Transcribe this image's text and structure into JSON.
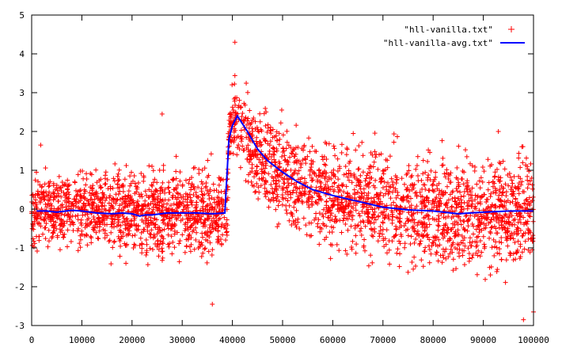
{
  "chart_data": {
    "type": "scatter",
    "title": "",
    "xlabel": "",
    "ylabel": "",
    "xlim": [
      0,
      100000
    ],
    "ylim": [
      -3,
      5
    ],
    "xticks": [
      0,
      10000,
      20000,
      30000,
      40000,
      50000,
      60000,
      70000,
      80000,
      90000,
      100000
    ],
    "yticks": [
      -3,
      -2,
      -1,
      0,
      1,
      2,
      3,
      4,
      5
    ],
    "grid": false,
    "legend_position": "top-right",
    "colors": {
      "scatter": "#ff0000",
      "line": "#0000ff",
      "axes": "#000000"
    },
    "series": [
      {
        "name": "\"hll-vanilla.txt\"",
        "kind": "scatter",
        "marker": "+",
        "count": 3300,
        "x_range": [
          0,
          100000
        ],
        "band": {
          "x": [
            0,
            10000,
            20000,
            30000,
            39000,
            39200,
            40500,
            42000,
            45000,
            50000,
            55000,
            60000,
            65000,
            70000,
            80000,
            90000,
            100000
          ],
          "center": [
            -0.05,
            0.0,
            -0.12,
            -0.1,
            -0.05,
            2.0,
            2.4,
            2.1,
            1.3,
            0.85,
            0.55,
            0.35,
            0.2,
            0.1,
            -0.05,
            -0.08,
            -0.05
          ],
          "halfwidth": [
            1.3,
            1.4,
            1.5,
            1.5,
            1.5,
            1.0,
            1.3,
            1.6,
            1.7,
            1.8,
            1.8,
            1.85,
            1.9,
            1.95,
            2.0,
            2.1,
            2.2
          ]
        },
        "notable_points": [
          {
            "x": 40500,
            "y": 4.3
          },
          {
            "x": 1800,
            "y": 1.65
          },
          {
            "x": 26000,
            "y": 2.45
          },
          {
            "x": 36000,
            "y": -2.45
          },
          {
            "x": 93000,
            "y": 2.0
          },
          {
            "x": 98000,
            "y": -2.85
          },
          {
            "x": 100000,
            "y": -2.65
          }
        ]
      },
      {
        "name": "\"hll-vanilla-avg.txt\"",
        "kind": "line",
        "x": [
          1000,
          3000,
          5000,
          8000,
          10000,
          13000,
          16000,
          18000,
          20000,
          21500,
          22500,
          24000,
          27000,
          30000,
          33000,
          36000,
          38500,
          39300,
          40000,
          41000,
          43000,
          45000,
          47000,
          50000,
          53000,
          56000,
          60000,
          65000,
          70000,
          75000,
          80000,
          85000,
          90000,
          95000,
          100000
        ],
        "y": [
          -0.05,
          -0.05,
          -0.08,
          -0.03,
          -0.05,
          -0.1,
          -0.12,
          -0.1,
          -0.12,
          -0.18,
          -0.15,
          -0.15,
          -0.1,
          -0.1,
          -0.1,
          -0.12,
          -0.1,
          1.8,
          2.15,
          2.4,
          2.0,
          1.55,
          1.25,
          0.95,
          0.7,
          0.5,
          0.35,
          0.2,
          0.05,
          -0.02,
          -0.05,
          -0.12,
          -0.08,
          -0.05,
          -0.05
        ]
      }
    ]
  }
}
